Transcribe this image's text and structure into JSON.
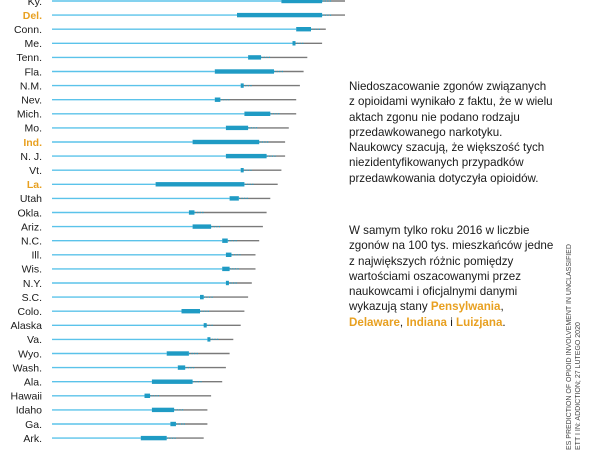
{
  "chart_data": {
    "type": "range-bar",
    "rows": [
      {
        "state": "Ky.",
        "highlight": false,
        "line_end": 0.86,
        "dots_start": 0.62,
        "dots_end": 0.73,
        "marker": 0.62
      },
      {
        "state": "Del.",
        "highlight": true,
        "line_end": 0.81,
        "dots_start": 0.5,
        "dots_end": 0.73,
        "marker": 0.5
      },
      {
        "state": "Conn.",
        "highlight": false,
        "line_end": 0.74,
        "dots_start": 0.66,
        "dots_end": 0.7,
        "marker": 0.66
      },
      {
        "state": "Me.",
        "highlight": false,
        "line_end": 0.73,
        "dots_start": 0.65,
        "dots_end": 0.655,
        "marker": 0.65
      },
      {
        "state": "Tenn.",
        "highlight": false,
        "line_end": 0.69,
        "dots_start": 0.53,
        "dots_end": 0.565,
        "marker": 0.53
      },
      {
        "state": "Fla.",
        "highlight": false,
        "line_end": 0.68,
        "dots_start": 0.44,
        "dots_end": 0.6,
        "marker": 0.44
      },
      {
        "state": "N.M.",
        "highlight": false,
        "line_end": 0.67,
        "dots_start": 0.51,
        "dots_end": 0.515,
        "marker": 0.51
      },
      {
        "state": "Nev.",
        "highlight": false,
        "line_end": 0.66,
        "dots_start": 0.44,
        "dots_end": 0.455,
        "marker": 0.44
      },
      {
        "state": "Mich.",
        "highlight": false,
        "line_end": 0.66,
        "dots_start": 0.52,
        "dots_end": 0.59,
        "marker": 0.52
      },
      {
        "state": "Mo.",
        "highlight": false,
        "line_end": 0.64,
        "dots_start": 0.47,
        "dots_end": 0.53,
        "marker": 0.47
      },
      {
        "state": "Ind.",
        "highlight": true,
        "line_end": 0.63,
        "dots_start": 0.38,
        "dots_end": 0.56,
        "marker": 0.38
      },
      {
        "state": "N. J.",
        "highlight": false,
        "line_end": 0.63,
        "dots_start": 0.47,
        "dots_end": 0.58,
        "marker": 0.47
      },
      {
        "state": "Vt.",
        "highlight": false,
        "line_end": 0.62,
        "dots_start": 0.51,
        "dots_end": 0.515,
        "marker": 0.51
      },
      {
        "state": "La.",
        "highlight": true,
        "line_end": 0.61,
        "dots_start": 0.28,
        "dots_end": 0.52,
        "marker": 0.28
      },
      {
        "state": "Utah",
        "highlight": false,
        "line_end": 0.59,
        "dots_start": 0.48,
        "dots_end": 0.505,
        "marker": 0.48
      },
      {
        "state": "Okla.",
        "highlight": false,
        "line_end": 0.58,
        "dots_start": 0.37,
        "dots_end": 0.385,
        "marker": 0.37
      },
      {
        "state": "Ariz.",
        "highlight": false,
        "line_end": 0.57,
        "dots_start": 0.38,
        "dots_end": 0.43,
        "marker": 0.38
      },
      {
        "state": "N.C.",
        "highlight": false,
        "line_end": 0.56,
        "dots_start": 0.46,
        "dots_end": 0.475,
        "marker": 0.46
      },
      {
        "state": "Ill.",
        "highlight": false,
        "line_end": 0.55,
        "dots_start": 0.47,
        "dots_end": 0.485,
        "marker": 0.47
      },
      {
        "state": "Wis.",
        "highlight": false,
        "line_end": 0.55,
        "dots_start": 0.46,
        "dots_end": 0.48,
        "marker": 0.46
      },
      {
        "state": "N.Y.",
        "highlight": false,
        "line_end": 0.54,
        "dots_start": 0.47,
        "dots_end": 0.475,
        "marker": 0.47
      },
      {
        "state": "S.C.",
        "highlight": false,
        "line_end": 0.53,
        "dots_start": 0.4,
        "dots_end": 0.41,
        "marker": 0.4
      },
      {
        "state": "Colo.",
        "highlight": false,
        "line_end": 0.52,
        "dots_start": 0.35,
        "dots_end": 0.4,
        "marker": 0.35
      },
      {
        "state": "Alaska",
        "highlight": false,
        "line_end": 0.51,
        "dots_start": 0.41,
        "dots_end": 0.41,
        "marker": 0.41
      },
      {
        "state": "Va.",
        "highlight": false,
        "line_end": 0.49,
        "dots_start": 0.42,
        "dots_end": 0.425,
        "marker": 0.42
      },
      {
        "state": "Wyo.",
        "highlight": false,
        "line_end": 0.48,
        "dots_start": 0.31,
        "dots_end": 0.37,
        "marker": 0.31
      },
      {
        "state": "Wash.",
        "highlight": false,
        "line_end": 0.47,
        "dots_start": 0.34,
        "dots_end": 0.36,
        "marker": 0.34
      },
      {
        "state": "Ala.",
        "highlight": false,
        "line_end": 0.46,
        "dots_start": 0.27,
        "dots_end": 0.38,
        "marker": 0.27
      },
      {
        "state": "Hawaii",
        "highlight": false,
        "line_end": 0.43,
        "dots_start": 0.25,
        "dots_end": 0.265,
        "marker": 0.25
      },
      {
        "state": "Idaho",
        "highlight": false,
        "line_end": 0.42,
        "dots_start": 0.27,
        "dots_end": 0.33,
        "marker": 0.27
      },
      {
        "state": "Ga.",
        "highlight": false,
        "line_end": 0.42,
        "dots_start": 0.32,
        "dots_end": 0.335,
        "marker": 0.32
      },
      {
        "state": "Ark.",
        "highlight": false,
        "line_end": 0.41,
        "dots_start": 0.24,
        "dots_end": 0.31,
        "marker": 0.24
      }
    ],
    "colors": {
      "baseline": "#5bc3ea",
      "dots": "#1f9bc4",
      "gray": "#7a7a7a",
      "highlight": "#e8a020"
    }
  },
  "notes": {
    "p1": "Niedoszacowanie zgonów związanych z opioidami wynikało z faktu, że w wielu aktach zgonu nie podano rodzaju przedawkowanego narkotyku. Naukowcy szacują, że większość tych niezidentyfikowanych przypadków przedawkowania dotyczyła opioidów.",
    "p2_text": "W samym tylko roku 2016 w liczbie zgonów na 100 tys. mieszkańców jedne z największych różnic pomiędzy wartościami oszacowanymi przez naukowcami i oficjalnymi danymi wykazują stany",
    "hl_states": [
      "Pensylwania",
      "Delaware",
      "Indiana",
      "Luizjana"
    ],
    "sep_comma": ",",
    "sep_and": "i",
    "end_period": "."
  },
  "credit": {
    "line1": "ES PREDICTION OF OPIOID INVOLVEMENT IN UNCLASSIFIED",
    "line2": "ETT I IN: ADDICTION; 27 LUTEGO 2020"
  }
}
